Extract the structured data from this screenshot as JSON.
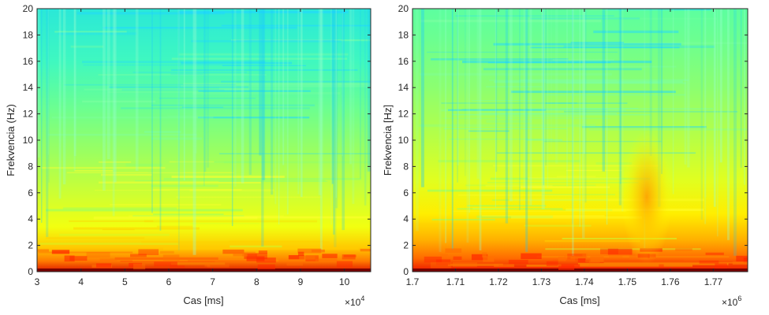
{
  "chart_data": [
    {
      "type": "heatmap",
      "title": "",
      "xlabel": "Cas [ms]",
      "ylabel": "Frekvencia (Hz)",
      "x_exponent": "×10",
      "x_exponent_power": "4",
      "xlim": [
        3,
        10.6
      ],
      "ylim": [
        0,
        20
      ],
      "xticks": [
        3,
        4,
        5,
        6,
        7,
        8,
        9,
        10
      ],
      "yticks": [
        0,
        2,
        4,
        6,
        8,
        10,
        12,
        14,
        16,
        18,
        20
      ],
      "xtick_labels": [
        "3",
        "4",
        "5",
        "6",
        "7",
        "8",
        "9",
        "10"
      ],
      "ytick_labels": [
        "0",
        "2",
        "4",
        "6",
        "8",
        "10",
        "12",
        "14",
        "16",
        "18",
        "20"
      ],
      "colormap": "jet",
      "power_profile": {
        "frequency_hz": [
          0,
          0.5,
          1,
          2,
          3,
          4,
          6,
          8,
          10,
          12,
          14,
          16,
          18,
          20
        ],
        "relative_power": [
          1.0,
          0.9,
          0.78,
          0.66,
          0.6,
          0.56,
          0.52,
          0.49,
          0.45,
          0.42,
          0.39,
          0.36,
          0.34,
          0.33
        ]
      }
    },
    {
      "type": "heatmap",
      "title": "",
      "xlabel": "Cas [ms]",
      "ylabel": "Frekvencia [Hz]",
      "x_exponent": "×10",
      "x_exponent_power": "6",
      "xlim": [
        1.7,
        1.778
      ],
      "ylim": [
        0,
        20
      ],
      "xticks": [
        1.7,
        1.71,
        1.72,
        1.73,
        1.74,
        1.75,
        1.76,
        1.77
      ],
      "yticks": [
        0,
        2,
        4,
        6,
        8,
        10,
        12,
        14,
        16,
        18,
        20
      ],
      "xtick_labels": [
        "1.7",
        "1.71",
        "1.72",
        "1.73",
        "1.74",
        "1.75",
        "1.76",
        "1.77"
      ],
      "ytick_labels": [
        "0",
        "2",
        "4",
        "6",
        "8",
        "10",
        "12",
        "14",
        "16",
        "18",
        "20"
      ],
      "colormap": "jet",
      "power_profile": {
        "frequency_hz": [
          0,
          0.5,
          1,
          2,
          3,
          4,
          6,
          8,
          10,
          12,
          14,
          16,
          18,
          20
        ],
        "relative_power": [
          1.0,
          0.92,
          0.82,
          0.72,
          0.66,
          0.62,
          0.57,
          0.53,
          0.5,
          0.46,
          0.43,
          0.41,
          0.4,
          0.39
        ]
      },
      "annotation": "elevated power near 1.752×10^6 ms, 2–9 Hz"
    }
  ]
}
